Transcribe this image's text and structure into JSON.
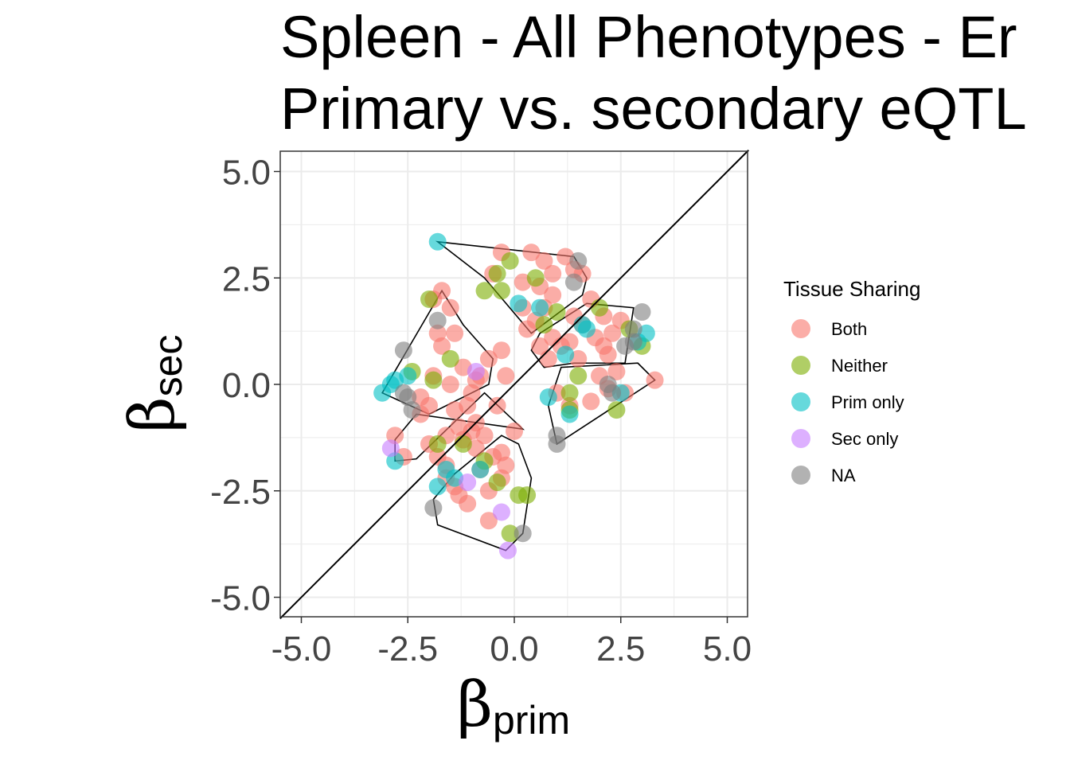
{
  "chart_data": {
    "type": "scatter",
    "title_line1": "Spleen - All Phenotypes - Er",
    "title_line2": "Primary vs. secondary eQTL",
    "xlabel_symbol": "β",
    "xlabel_sub": "prim",
    "ylabel_symbol": "β",
    "ylabel_sub": "sec",
    "xlim": [
      -5.5,
      5.5
    ],
    "ylim": [
      -5.5,
      5.5
    ],
    "x_ticks": [
      -5.0,
      -2.5,
      0.0,
      2.5,
      5.0
    ],
    "y_ticks": [
      -5.0,
      -2.5,
      0.0,
      2.5,
      5.0
    ],
    "x_tick_labels": [
      "-5.0",
      "-2.5",
      "0.0",
      "2.5",
      "5.0"
    ],
    "y_tick_labels": [
      "-5.0",
      "-2.5",
      "0.0",
      "2.5",
      "5.0"
    ],
    "grid": true,
    "reference_line": "y = x",
    "legend": {
      "title": "Tissue Sharing",
      "placement": "right",
      "entries": [
        "Both",
        "Neither",
        "Prim only",
        "Sec only",
        "NA"
      ]
    },
    "colors": {
      "Both": "#F8766D",
      "Neither": "#7CAE00",
      "Prim only": "#00BFC4",
      "Sec only": "#C77CFF",
      "NA": "#7F7F7F"
    },
    "hulls": [
      [
        [
          -1.8,
          3.35
        ],
        [
          1.4,
          3.0
        ],
        [
          1.7,
          2.5
        ],
        [
          1.6,
          2.1
        ],
        [
          0.4,
          1.2
        ],
        [
          -0.7,
          2.5
        ]
      ],
      [
        [
          -1.7,
          2.2
        ],
        [
          -3.1,
          -0.2
        ],
        [
          -2.0,
          -0.7
        ],
        [
          -0.6,
          0.0
        ],
        [
          -0.5,
          0.6
        ],
        [
          -1.2,
          1.4
        ]
      ],
      [
        [
          -0.7,
          -0.2
        ],
        [
          0.2,
          -1.05
        ],
        [
          -2.3,
          -0.7
        ],
        [
          -2.8,
          -1.3
        ],
        [
          -2.8,
          -1.8
        ],
        [
          -2.3,
          -1.75
        ]
      ],
      [
        [
          0.1,
          -1.4
        ],
        [
          -0.3,
          -1.2
        ],
        [
          -1.4,
          -2.1
        ],
        [
          -1.9,
          -2.7
        ],
        [
          -1.8,
          -3.3
        ],
        [
          -0.2,
          -3.9
        ],
        [
          0.2,
          -3.5
        ],
        [
          0.4,
          -2.2
        ]
      ],
      [
        [
          1.7,
          1.9
        ],
        [
          2.8,
          1.8
        ],
        [
          2.6,
          0.5
        ],
        [
          1.4,
          0.5
        ],
        [
          0.7,
          0.4
        ],
        [
          0.4,
          0.8
        ],
        [
          0.6,
          1.2
        ]
      ],
      [
        [
          1.1,
          0.4
        ],
        [
          2.9,
          0.5
        ],
        [
          3.3,
          0.1
        ],
        [
          1.0,
          -1.4
        ],
        [
          0.8,
          -0.5
        ]
      ]
    ],
    "series": [
      {
        "name": "Both",
        "points": [
          [
            -0.3,
            3.1
          ],
          [
            0.4,
            3.1
          ],
          [
            0.7,
            2.9
          ],
          [
            1.2,
            3.0
          ],
          [
            -0.5,
            2.6
          ],
          [
            0.2,
            2.4
          ],
          [
            0.6,
            2.3
          ],
          [
            0.9,
            2.6
          ],
          [
            1.6,
            2.6
          ],
          [
            1.4,
            2.7
          ],
          [
            1.8,
            2.0
          ],
          [
            2.1,
            1.6
          ],
          [
            2.3,
            1.2
          ],
          [
            0.3,
            1.3
          ],
          [
            0.5,
            1.5
          ],
          [
            0.6,
            0.9
          ],
          [
            0.9,
            1.1
          ],
          [
            1.3,
            1.0
          ],
          [
            1.9,
            1.1
          ],
          [
            2.2,
            0.7
          ],
          [
            2.4,
            0.3
          ],
          [
            2.6,
            -0.2
          ],
          [
            3.3,
            0.1
          ],
          [
            1.8,
            -0.4
          ],
          [
            1.6,
            1.4
          ],
          [
            0.8,
            0.6
          ],
          [
            1.1,
            0.9
          ],
          [
            2.0,
            0.2
          ],
          [
            1.5,
            0.6
          ],
          [
            0.7,
            1.8
          ],
          [
            0.2,
            1.8
          ],
          [
            0.9,
            2.1
          ],
          [
            1.4,
            1.6
          ],
          [
            2.1,
            0.9
          ],
          [
            2.5,
            1.5
          ],
          [
            1.0,
            -0.2
          ],
          [
            1.3,
            -0.5
          ],
          [
            2.2,
            -0.1
          ],
          [
            -1.7,
            2.2
          ],
          [
            -1.9,
            2.0
          ],
          [
            -1.5,
            1.8
          ],
          [
            -1.8,
            1.2
          ],
          [
            -1.4,
            1.2
          ],
          [
            -1.7,
            0.9
          ],
          [
            -0.6,
            0.6
          ],
          [
            -0.3,
            0.8
          ],
          [
            -1.2,
            0.4
          ],
          [
            -0.8,
            0.2
          ],
          [
            -1.5,
            0.0
          ],
          [
            -1.0,
            -0.2
          ],
          [
            -2.0,
            -0.5
          ],
          [
            -2.2,
            -0.7
          ],
          [
            -1.1,
            -0.5
          ],
          [
            -0.9,
            -0.9
          ],
          [
            -1.3,
            -1.0
          ],
          [
            -1.6,
            -1.2
          ],
          [
            -2.8,
            -1.2
          ],
          [
            -2.6,
            -1.7
          ],
          [
            -2.0,
            -1.4
          ],
          [
            -1.6,
            -1.9
          ],
          [
            -0.9,
            -1.5
          ],
          [
            -0.5,
            -1.7
          ],
          [
            -0.8,
            -2.0
          ],
          [
            -0.3,
            -2.2
          ],
          [
            -1.4,
            -2.4
          ],
          [
            -1.3,
            -2.6
          ],
          [
            -0.6,
            -2.5
          ],
          [
            -0.6,
            -3.2
          ],
          [
            -1.2,
            -1.3
          ],
          [
            -0.7,
            -1.2
          ],
          [
            -0.2,
            -1.9
          ],
          [
            -1.8,
            -1.7
          ],
          [
            -0.4,
            -0.5
          ],
          [
            -1.0,
            -1.1
          ],
          [
            -0.9,
            0.1
          ],
          [
            -1.9,
            0.2
          ],
          [
            -2.2,
            -0.3
          ],
          [
            -1.4,
            -0.6
          ],
          [
            -1.1,
            -2.8
          ],
          [
            -0.3,
            -1.6
          ],
          [
            -1.6,
            -2.2
          ],
          [
            0.0,
            -1.1
          ],
          [
            -0.2,
            0.2
          ]
        ]
      },
      {
        "name": "Neither",
        "points": [
          [
            -0.1,
            2.9
          ],
          [
            -0.7,
            2.2
          ],
          [
            -0.4,
            2.6
          ],
          [
            -0.3,
            2.2
          ],
          [
            0.5,
            2.5
          ],
          [
            1.0,
            1.7
          ],
          [
            2.0,
            1.8
          ],
          [
            3.0,
            0.9
          ],
          [
            2.4,
            -0.6
          ],
          [
            1.3,
            -0.6
          ],
          [
            1.3,
            -0.2
          ],
          [
            0.7,
            1.4
          ],
          [
            -2.0,
            2.0
          ],
          [
            -1.5,
            0.6
          ],
          [
            -1.9,
            0.1
          ],
          [
            -2.4,
            0.3
          ],
          [
            -1.2,
            -1.4
          ],
          [
            -1.8,
            -1.4
          ],
          [
            -0.7,
            -1.8
          ],
          [
            -0.4,
            -2.3
          ],
          [
            0.1,
            -2.6
          ],
          [
            0.3,
            -2.6
          ],
          [
            -0.1,
            -3.5
          ],
          [
            1.5,
            0.2
          ],
          [
            2.7,
            1.3
          ]
        ]
      },
      {
        "name": "Prim only",
        "points": [
          [
            -1.8,
            3.35
          ],
          [
            0.1,
            1.9
          ],
          [
            0.6,
            1.8
          ],
          [
            1.6,
            1.4
          ],
          [
            1.7,
            1.3
          ],
          [
            2.9,
            1.0
          ],
          [
            3.1,
            1.2
          ],
          [
            2.5,
            -0.2
          ],
          [
            1.2,
            0.7
          ],
          [
            0.8,
            -0.3
          ],
          [
            1.3,
            -0.7
          ],
          [
            -3.1,
            -0.2
          ],
          [
            -2.8,
            0.1
          ],
          [
            -2.5,
            0.2
          ],
          [
            -2.9,
            0.0
          ],
          [
            -2.8,
            -1.8
          ],
          [
            -1.8,
            -2.4
          ],
          [
            -1.4,
            -2.2
          ],
          [
            -0.8,
            -2.0
          ],
          [
            -1.6,
            -2.0
          ]
        ]
      },
      {
        "name": "Sec only",
        "points": [
          [
            -0.9,
            0.3
          ],
          [
            -2.9,
            -1.5
          ],
          [
            -0.3,
            -3.0
          ],
          [
            -0.15,
            -3.9
          ],
          [
            -1.1,
            -2.3
          ]
        ]
      },
      {
        "name": "NA",
        "points": [
          [
            1.5,
            2.9
          ],
          [
            1.4,
            2.4
          ],
          [
            3.0,
            1.7
          ],
          [
            2.8,
            1.3
          ],
          [
            2.6,
            0.9
          ],
          [
            2.2,
            0.0
          ],
          [
            2.3,
            -0.2
          ],
          [
            1.0,
            -1.2
          ],
          [
            1.0,
            -1.4
          ],
          [
            -1.8,
            1.5
          ],
          [
            -2.6,
            0.8
          ],
          [
            -2.5,
            -0.3
          ],
          [
            -2.4,
            -0.6
          ],
          [
            -1.9,
            -2.9
          ],
          [
            0.2,
            -3.5
          ],
          [
            2.8,
            1.0
          ],
          [
            -2.6,
            -0.2
          ]
        ]
      }
    ]
  }
}
